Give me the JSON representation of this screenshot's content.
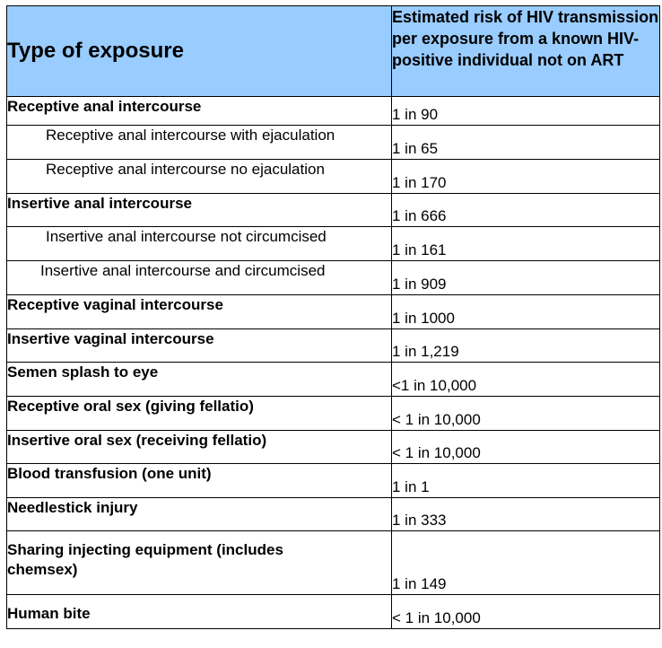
{
  "table": {
    "headers": {
      "type": "Type of exposure",
      "risk": "Estimated risk of HIV transmission per exposure from a known HIV-positive individual not on ART"
    },
    "rows": [
      {
        "exposure": "Receptive anal intercourse",
        "risk": "1 in 90"
      },
      {
        "exposure": "Receptive anal intercourse with ejaculation",
        "risk": "1 in 65"
      },
      {
        "exposure": "Receptive anal intercourse no ejaculation",
        "risk": "1 in 170"
      },
      {
        "exposure": "Insertive anal intercourse",
        "risk": "1 in 666"
      },
      {
        "exposure": "Insertive anal intercourse not circumcised",
        "risk": "1 in 161"
      },
      {
        "exposure": "Insertive anal intercourse and circumcised",
        "risk": "1 in 909"
      },
      {
        "exposure": "Receptive vaginal intercourse",
        "risk": "1 in 1000"
      },
      {
        "exposure": "Insertive vaginal intercourse",
        "risk": "1 in 1,219"
      },
      {
        "exposure": "Semen splash to eye",
        "risk": "<1 in 10,000"
      },
      {
        "exposure": "Receptive oral sex (giving fellatio)",
        "risk": "< 1 in 10,000"
      },
      {
        "exposure": "Insertive oral sex (receiving fellatio)",
        "risk": "< 1 in 10,000"
      },
      {
        "exposure": "Blood transfusion (one unit)",
        "risk": "1 in 1"
      },
      {
        "exposure": "Needlestick injury",
        "risk": "1 in 333"
      },
      {
        "exposure": "Sharing injecting equipment (includes chemsex)",
        "risk": "1 in 149"
      },
      {
        "exposure": "Human bite",
        "risk": "< 1 in 10,000"
      }
    ]
  }
}
